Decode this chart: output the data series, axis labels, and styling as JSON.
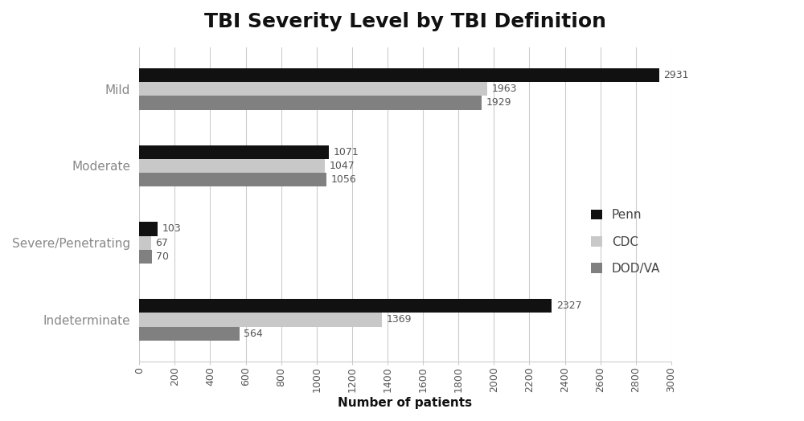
{
  "title": "TBI Severity Level by TBI Definition",
  "xlabel": "Number of patients",
  "categories": [
    "Mild",
    "Moderate",
    "Severe/Penetrating",
    "Indeterminate"
  ],
  "series": {
    "Penn": [
      2931,
      1071,
      103,
      2327
    ],
    "CDC": [
      1963,
      1047,
      67,
      1369
    ],
    "DOD/VA": [
      1929,
      1056,
      70,
      564
    ]
  },
  "colors": {
    "Penn": "#111111",
    "CDC": "#c8c8c8",
    "DOD/VA": "#808080"
  },
  "xlim": [
    0,
    3000
  ],
  "xticks": [
    0,
    200,
    400,
    600,
    800,
    1000,
    1200,
    1400,
    1600,
    1800,
    2000,
    2200,
    2400,
    2600,
    2800,
    3000
  ],
  "bar_height": 0.18,
  "background_color": "#ffffff",
  "title_fontsize": 18,
  "label_fontsize": 11,
  "tick_fontsize": 9,
  "value_fontsize": 9,
  "legend_fontsize": 11,
  "category_fontsize": 11,
  "category_color": "#888888",
  "value_color": "#555555"
}
